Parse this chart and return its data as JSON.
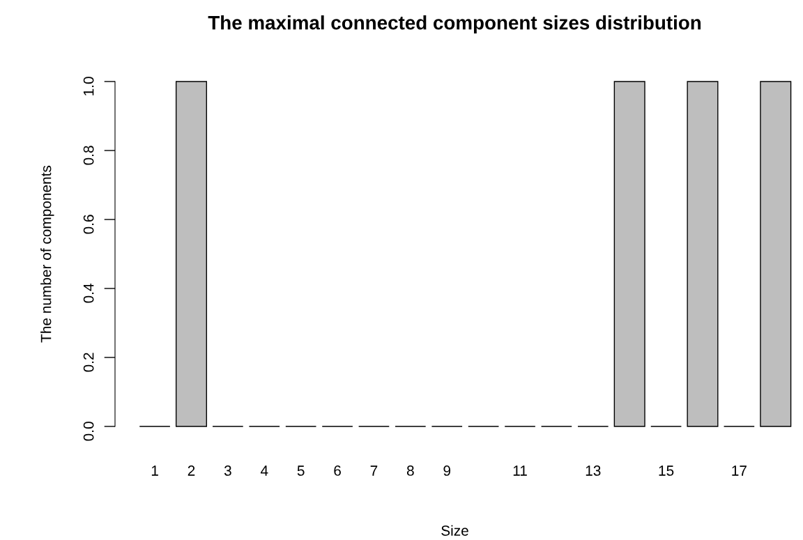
{
  "chart_data": {
    "type": "bar",
    "title": "The maximal connected component sizes distribution",
    "xlabel": "Size",
    "ylabel": "The number of components",
    "categories": [
      "1",
      "2",
      "3",
      "4",
      "5",
      "6",
      "7",
      "8",
      "9",
      null,
      "11",
      null,
      "13",
      null,
      "15",
      null,
      "17",
      null
    ],
    "values": [
      0,
      1,
      0,
      0,
      0,
      0,
      0,
      0,
      0,
      0,
      0,
      0,
      0,
      1,
      0,
      1,
      0,
      1
    ],
    "colors": [
      "#000000",
      "#bebebe",
      "#000000",
      "#000000",
      "#000000",
      "#000000",
      "#000000",
      "#000000",
      "#000000",
      "#000000",
      "#000000",
      "#000000",
      "#000000",
      "#bebebe",
      "#000000",
      "#bebebe",
      "#000000",
      "#bebebe"
    ],
    "ylim": [
      0,
      1
    ],
    "yticks": [
      {
        "value": 0,
        "label": "0.0"
      },
      {
        "value": 0.2,
        "label": "0.2"
      },
      {
        "value": 0.4,
        "label": "0.4"
      },
      {
        "value": 0.6,
        "label": "0.6"
      },
      {
        "value": 0.8,
        "label": "0.8"
      },
      {
        "value": 1,
        "label": "1.0"
      }
    ],
    "grid": false,
    "legend": false
  }
}
